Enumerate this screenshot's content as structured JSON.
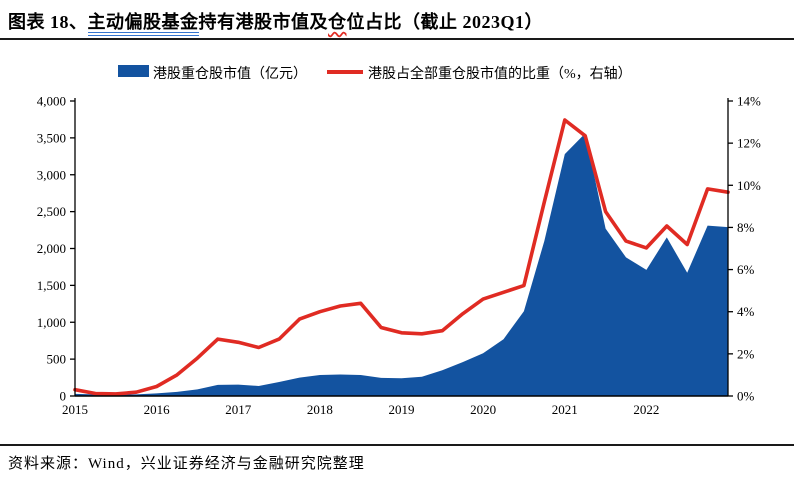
{
  "title": {
    "prefix": "图表 18、",
    "linked": "主动偏股基金",
    "mid": "持有港股市值及",
    "squiggle": "仓",
    "suffix": "位占比（截止 2023Q1）"
  },
  "legend": {
    "area_label": "港股重仓股市值（亿元）",
    "line_label": "港股占全部重仓股市值的比重（%，右轴）"
  },
  "footer": {
    "source_text": "资料来源：Wind，兴业证券经济与金融研究院整理"
  },
  "colors": {
    "area_blue": "#1353A0",
    "line_red": "#E02B23",
    "axis": "#000000",
    "rule": "#1A1A1A",
    "link_underline": "#3575CF"
  },
  "chart_data": {
    "type": "area+line combo",
    "title": "主动偏股基金持有港股市值及仓位占比（截止2023Q1）",
    "x_quarters": [
      "2015Q1",
      "2015Q2",
      "2015Q3",
      "2015Q4",
      "2016Q1",
      "2016Q2",
      "2016Q3",
      "2016Q4",
      "2017Q1",
      "2017Q2",
      "2017Q3",
      "2017Q4",
      "2018Q1",
      "2018Q2",
      "2018Q3",
      "2018Q4",
      "2019Q1",
      "2019Q2",
      "2019Q3",
      "2019Q4",
      "2020Q1",
      "2020Q2",
      "2020Q3",
      "2020Q4",
      "2021Q1",
      "2021Q2",
      "2021Q3",
      "2021Q4",
      "2022Q1",
      "2022Q2",
      "2022Q3",
      "2022Q4",
      "2023Q1"
    ],
    "x_year_labels": [
      "2015",
      "2016",
      "2017",
      "2018",
      "2019",
      "2020",
      "2021",
      "2022"
    ],
    "series": [
      {
        "name": "港股重仓股市值（亿元）",
        "type": "area",
        "axis": "left",
        "values": [
          28,
          22,
          18,
          22,
          35,
          55,
          90,
          150,
          155,
          135,
          190,
          250,
          285,
          292,
          285,
          245,
          240,
          260,
          350,
          460,
          580,
          770,
          1150,
          2100,
          3280,
          3560,
          2270,
          1880,
          1710,
          2150,
          1670,
          2310,
          2290
        ]
      },
      {
        "name": "港股占全部重仓股市值的比重（%，右轴）",
        "type": "line",
        "axis": "right",
        "values": [
          0.3,
          0.12,
          0.1,
          0.18,
          0.45,
          1.0,
          1.8,
          2.7,
          2.55,
          2.3,
          2.7,
          3.65,
          4.0,
          4.27,
          4.4,
          3.25,
          3.0,
          2.95,
          3.1,
          3.9,
          4.6,
          4.92,
          5.24,
          9.2,
          13.1,
          12.35,
          8.75,
          7.35,
          7.03,
          8.07,
          7.19,
          9.83,
          9.67
        ]
      }
    ],
    "left_axis": {
      "min": 0,
      "max": 4000,
      "step": 500,
      "ticks": [
        "0",
        "500",
        "1,000",
        "1,500",
        "2,000",
        "2,500",
        "3,000",
        "3,500",
        "4,000"
      ]
    },
    "right_axis": {
      "min": 0,
      "max": 14,
      "step": 2,
      "ticks": [
        "0%",
        "2%",
        "4%",
        "6%",
        "8%",
        "10%",
        "12%",
        "14%"
      ]
    },
    "grid": false,
    "legend_position": "top"
  }
}
